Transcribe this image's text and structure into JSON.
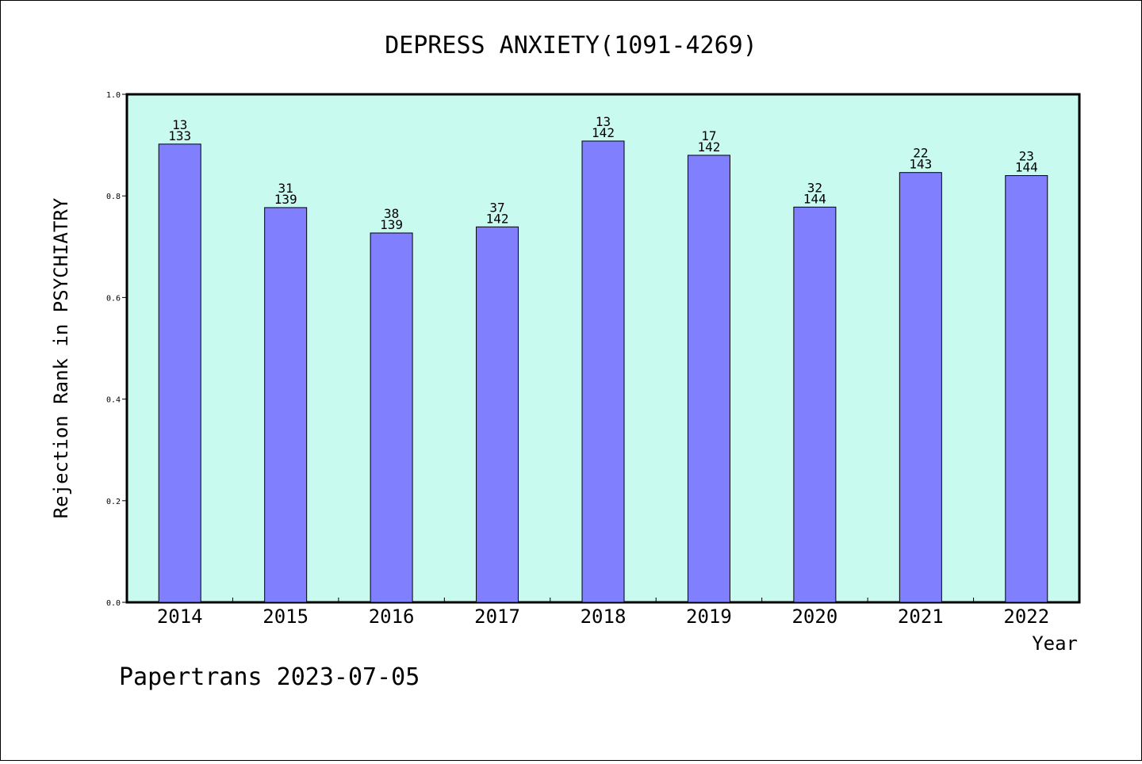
{
  "chart_data": {
    "type": "bar",
    "title": "DEPRESS ANXIETY(1091-4269)",
    "xlabel": "Year",
    "ylabel": "Rejection Rank in PSYCHIATRY",
    "ylim": [
      0,
      1.0
    ],
    "yticks": [
      "0.0",
      "0.2",
      "0.4",
      "0.6",
      "0.8",
      "1.0"
    ],
    "categories": [
      "2014",
      "2015",
      "2016",
      "2017",
      "2018",
      "2019",
      "2020",
      "2021",
      "2022"
    ],
    "values": [
      0.902,
      0.777,
      0.727,
      0.739,
      0.908,
      0.88,
      0.778,
      0.846,
      0.84
    ],
    "rank_labels": [
      "13",
      "31",
      "38",
      "37",
      "13",
      "17",
      "32",
      "22",
      "23"
    ],
    "total_labels": [
      "133",
      "139",
      "139",
      "142",
      "142",
      "142",
      "144",
      "143",
      "144"
    ],
    "grid": false,
    "legend": "none",
    "colors": {
      "plot_background": "#c8faf0",
      "bar_fill": "#8080ff",
      "bar_stroke": "#000000"
    }
  },
  "footer": {
    "text": "Papertrans 2023-07-05"
  }
}
